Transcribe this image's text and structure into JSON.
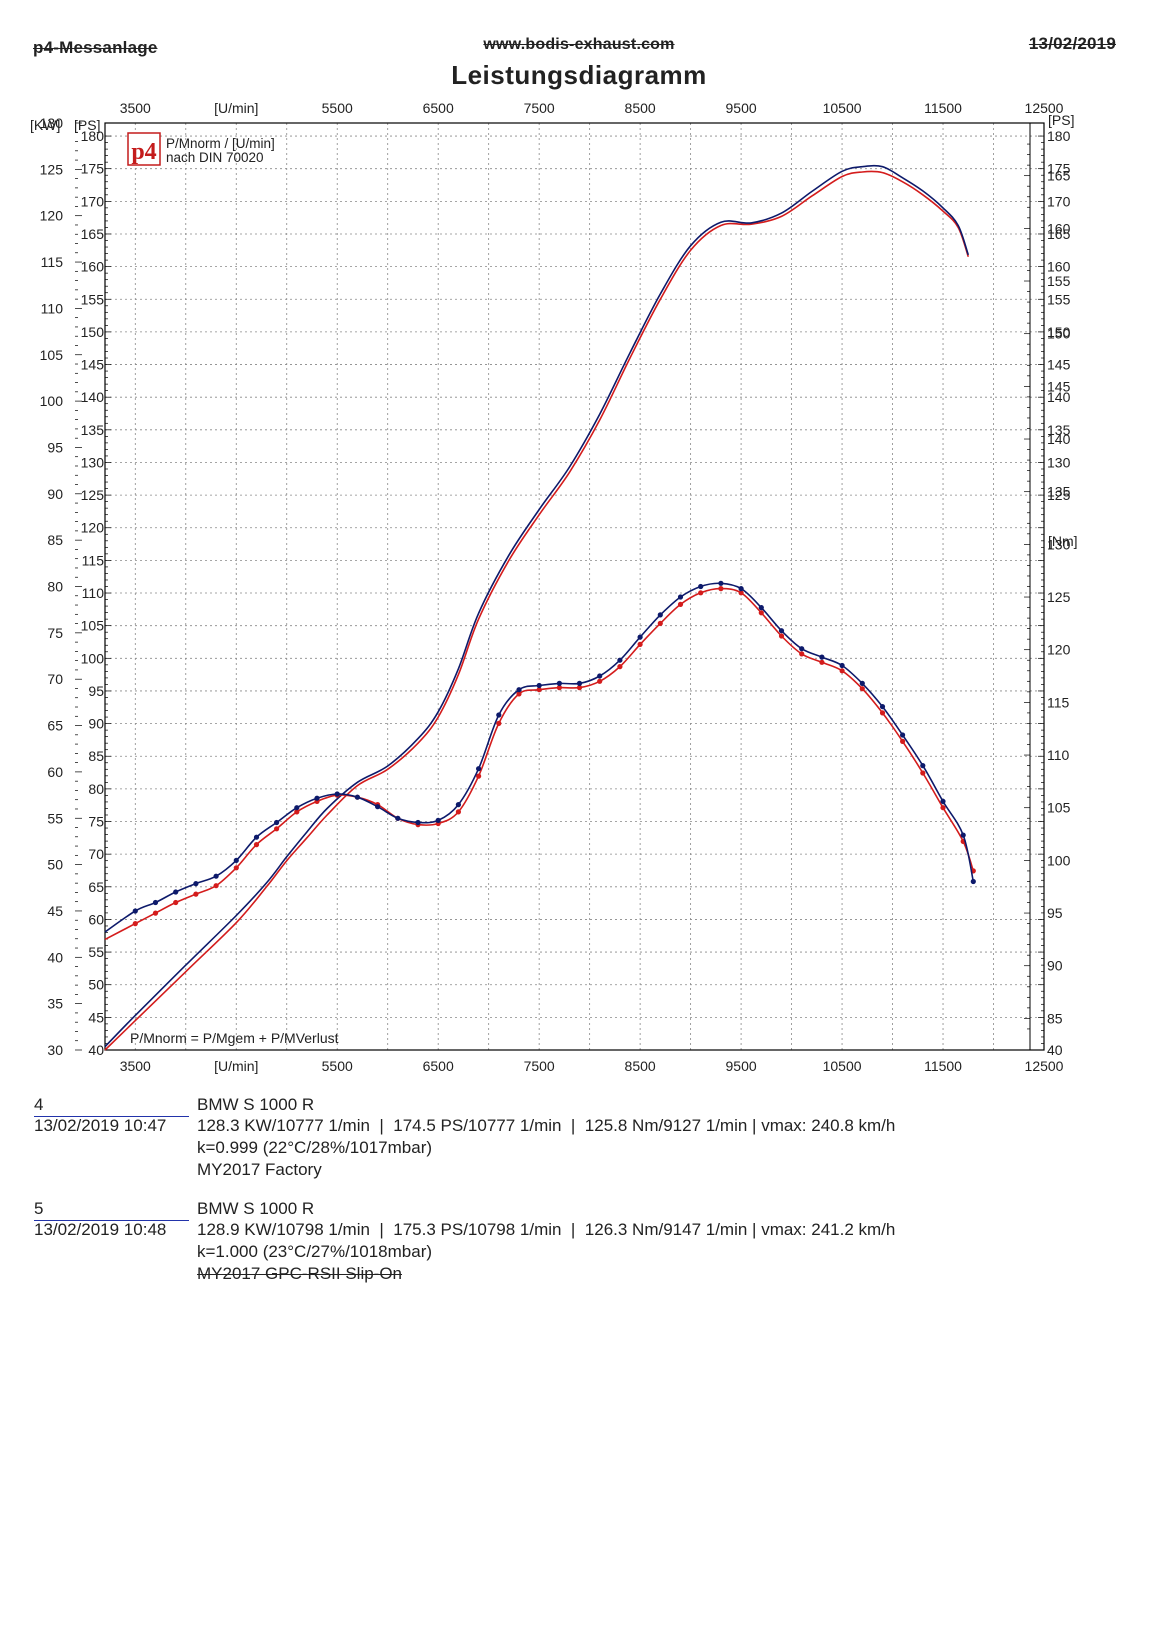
{
  "header": {
    "left": "p4-Messanlage",
    "center": "www.bodis-exhaust.com",
    "right": "13/02/2019",
    "title": "Leistungsdiagramm"
  },
  "legend": {
    "logo": "p4",
    "line1": "P/Mnorm / [U/min]",
    "line2": "nach DIN 70020"
  },
  "formula": "P/Mnorm = P/Mgem + P/MVerlust",
  "colors": {
    "run4": "#d41c1c",
    "run5": "#0d1a6b",
    "grid": "#888888",
    "frame": "#000000"
  },
  "chart_data": {
    "type": "line",
    "x_label": "[U/min]",
    "x_ticks": [
      3500,
      4500,
      5500,
      6500,
      7500,
      8500,
      9500,
      10500,
      11500,
      12500
    ],
    "x_tick_labels_top": [
      "3500",
      "[U/min]",
      "5500",
      "6500",
      "7500",
      "8500",
      "9500",
      "10500",
      "11500",
      "12500"
    ],
    "x_tick_labels_bottom": [
      "3500",
      "[U/min]",
      "5500",
      "6500",
      "7500",
      "8500",
      "9500",
      "10500",
      "11500",
      "12500"
    ],
    "xlim": [
      3200,
      12500
    ],
    "axes": {
      "kw": {
        "label": "[KW]",
        "lim": [
          30,
          130
        ],
        "ticks": [
          30,
          35,
          40,
          45,
          50,
          55,
          60,
          65,
          70,
          75,
          80,
          85,
          90,
          95,
          100,
          105,
          110,
          115,
          120,
          125,
          130
        ]
      },
      "ps_left": {
        "label": "[PS]",
        "lim": [
          40,
          182
        ],
        "ticks": [
          40,
          45,
          50,
          55,
          60,
          65,
          70,
          75,
          80,
          85,
          90,
          95,
          100,
          105,
          110,
          115,
          120,
          125,
          130,
          135,
          140,
          145,
          150,
          155,
          160,
          165,
          170,
          175,
          180
        ]
      },
      "ps_right": {
        "label": "[PS]",
        "lim": [
          40,
          182
        ],
        "ticks": [
          40,
          125,
          130,
          135,
          140,
          145,
          150,
          155,
          160,
          165,
          170,
          175,
          180
        ]
      },
      "nm": {
        "label": "[Nm]",
        "lim": [
          82,
          170
        ],
        "ticks": [
          85,
          90,
          95,
          100,
          105,
          110,
          115,
          120,
          125,
          130,
          135,
          140,
          145,
          150,
          155,
          160,
          165
        ]
      }
    },
    "grid": true,
    "series": [
      {
        "name": "4",
        "axis": "ps",
        "color": "#d41c1c",
        "x": [
          3200,
          3500,
          4000,
          4500,
          4800,
          5000,
          5200,
          5400,
          5700,
          6000,
          6300,
          6500,
          6700,
          6900,
          7200,
          7500,
          7800,
          8100,
          8400,
          8700,
          9000,
          9300,
          9600,
          9900,
          10200,
          10500,
          10700,
          10900,
          11100,
          11300,
          11500,
          11650,
          11750
        ],
        "values": [
          40,
          44.5,
          52,
          59.5,
          65,
          69,
          72.5,
          76,
          80.5,
          83,
          87,
          91,
          97.5,
          106,
          115,
          122,
          128.5,
          136.5,
          146,
          155,
          162.5,
          166.3,
          166.5,
          167.7,
          170.8,
          173.8,
          174.5,
          174.4,
          173,
          171,
          168.5,
          166,
          161.5
        ]
      },
      {
        "name": "5",
        "axis": "ps",
        "color": "#0d1a6b",
        "x": [
          3200,
          3500,
          4000,
          4500,
          4800,
          5000,
          5200,
          5400,
          5700,
          6000,
          6300,
          6500,
          6700,
          6900,
          7200,
          7500,
          7800,
          8100,
          8400,
          8700,
          9000,
          9300,
          9600,
          9900,
          10200,
          10500,
          10700,
          10900,
          11100,
          11300,
          11500,
          11650,
          11750
        ],
        "values": [
          40.5,
          45.3,
          53,
          60.6,
          65.6,
          69.6,
          73.4,
          77,
          81,
          83.5,
          87.7,
          91.8,
          98.4,
          106.9,
          115.8,
          122.8,
          129.3,
          137.4,
          146.8,
          155.8,
          163.2,
          166.8,
          166.7,
          168.2,
          171.5,
          174.6,
          175.3,
          175.3,
          173.6,
          171.6,
          169,
          166.3,
          161.8
        ]
      },
      {
        "name": "4",
        "axis": "nm",
        "color": "#d41c1c",
        "x": [
          3200,
          3500,
          3700,
          3900,
          4100,
          4300,
          4500,
          4700,
          4900,
          5100,
          5300,
          5500,
          5700,
          5900,
          6100,
          6300,
          6500,
          6700,
          6900,
          7100,
          7300,
          7500,
          7700,
          7900,
          8100,
          8300,
          8500,
          8700,
          8900,
          9100,
          9300,
          9500,
          9700,
          9900,
          10100,
          10300,
          10500,
          10700,
          10900,
          11100,
          11300,
          11500,
          11700,
          11800
        ],
        "values": [
          92.5,
          94,
          95,
          96,
          96.8,
          97.6,
          99.3,
          101.5,
          103,
          104.6,
          105.6,
          106.2,
          106,
          105.3,
          104,
          103.4,
          103.5,
          104.6,
          108,
          113,
          115.8,
          116.2,
          116.4,
          116.4,
          117,
          118.4,
          120.5,
          122.5,
          124.3,
          125.4,
          125.8,
          125.4,
          123.5,
          121.3,
          119.6,
          118.8,
          118,
          116.3,
          114,
          111.3,
          108.3,
          105,
          101.8,
          99
        ]
      },
      {
        "name": "5",
        "axis": "nm",
        "color": "#0d1a6b",
        "x": [
          3200,
          3500,
          3700,
          3900,
          4100,
          4300,
          4500,
          4700,
          4900,
          5100,
          5300,
          5500,
          5700,
          5900,
          6100,
          6300,
          6500,
          6700,
          6900,
          7100,
          7300,
          7500,
          7700,
          7900,
          8100,
          8300,
          8500,
          8700,
          8900,
          9100,
          9300,
          9500,
          9700,
          9900,
          10100,
          10300,
          10500,
          10700,
          10900,
          11100,
          11300,
          11500,
          11700,
          11800
        ],
        "values": [
          93.2,
          95.2,
          96,
          97,
          97.8,
          98.5,
          100,
          102.2,
          103.6,
          105,
          105.9,
          106.3,
          106,
          105.1,
          104,
          103.6,
          103.8,
          105.3,
          108.7,
          113.8,
          116.2,
          116.6,
          116.8,
          116.8,
          117.5,
          119,
          121.2,
          123.3,
          125,
          126,
          126.3,
          125.8,
          124,
          121.8,
          120.1,
          119.3,
          118.5,
          116.8,
          114.6,
          111.9,
          109,
          105.6,
          102.4,
          98
        ]
      }
    ]
  },
  "runs": [
    {
      "id": "run-4",
      "number": "4",
      "datetime": "13/02/2019  10:47",
      "model": "BMW S 1000 R",
      "results": "128.3 KW/10777 1/min  |  174.5 PS/10777 1/min  |  125.8 Nm/9127 1/min | vmax: 240.8 km/h",
      "conditions": "k=0.999 (22°C/28%/1017mbar)",
      "description": "MY2017 Factory"
    },
    {
      "id": "run-5",
      "number": "5",
      "datetime": "13/02/2019  10:48",
      "model": "BMW S 1000 R",
      "results": "128.9 KW/10798 1/min  |  175.3 PS/10798 1/min  |  126.3 Nm/9147 1/min | vmax: 241.2 km/h",
      "conditions": "k=1.000 (23°C/27%/1018mbar)",
      "description": "MY2017 GPC-RSII Slip-On"
    }
  ]
}
